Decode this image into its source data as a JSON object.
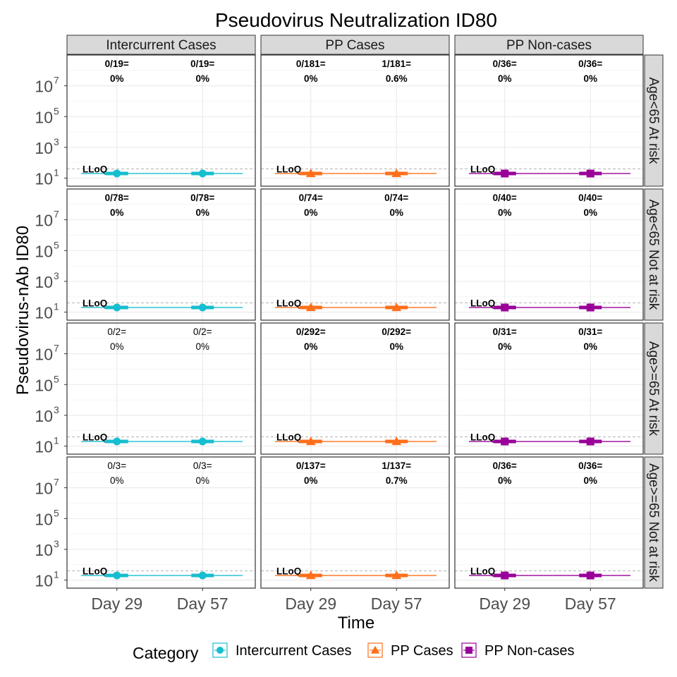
{
  "chart_data": {
    "type": "line",
    "title": "Pseudovirus Neutralization ID80",
    "xlabel": "Time",
    "ylabel": "Pseudovirus-nAb ID80",
    "y_scale": "log10",
    "ylim": [
      3,
      1000000000
    ],
    "y_ticks": [
      {
        "value": 10,
        "base": "10",
        "exp": "1"
      },
      {
        "value": 1000,
        "base": "10",
        "exp": "3"
      },
      {
        "value": 100000,
        "base": "10",
        "exp": "5"
      },
      {
        "value": 10000000,
        "base": "10",
        "exp": "7"
      }
    ],
    "x_categories": [
      "Day 29",
      "Day 57"
    ],
    "lloq": {
      "label": "LLoQ",
      "value": 40
    },
    "columns": [
      "Intercurrent Cases",
      "PP Cases",
      "PP Non-cases"
    ],
    "rows": [
      "Age<65 At risk",
      "Age<65 Not at risk",
      "Age>=65 At risk",
      "Age>=65 Not at risk"
    ],
    "legend": {
      "title": "Category",
      "position": "bottom",
      "items": [
        {
          "label": "Intercurrent Cases",
          "color": "#17becf",
          "shape": "circle"
        },
        {
          "label": "PP Cases",
          "color": "#ff6f1b",
          "shape": "triangle"
        },
        {
          "label": "PP Non-cases",
          "color": "#990099",
          "shape": "square"
        }
      ]
    },
    "grid": true,
    "panels": [
      {
        "row": 0,
        "col": 0,
        "values": [
          20,
          20
        ],
        "labels": [
          [
            "0/19=",
            "0%"
          ],
          [
            "0/19=",
            "0%"
          ]
        ],
        "bold": true
      },
      {
        "row": 0,
        "col": 1,
        "values": [
          20,
          20
        ],
        "labels": [
          [
            "0/181=",
            "0%"
          ],
          [
            "1/181=",
            "0.6%"
          ]
        ],
        "bold": true
      },
      {
        "row": 0,
        "col": 2,
        "values": [
          20,
          20
        ],
        "labels": [
          [
            "0/36=",
            "0%"
          ],
          [
            "0/36=",
            "0%"
          ]
        ],
        "bold": true
      },
      {
        "row": 1,
        "col": 0,
        "values": [
          20,
          20
        ],
        "labels": [
          [
            "0/78=",
            "0%"
          ],
          [
            "0/78=",
            "0%"
          ]
        ],
        "bold": true
      },
      {
        "row": 1,
        "col": 1,
        "values": [
          20,
          20
        ],
        "labels": [
          [
            "0/74=",
            "0%"
          ],
          [
            "0/74=",
            "0%"
          ]
        ],
        "bold": true
      },
      {
        "row": 1,
        "col": 2,
        "values": [
          20,
          20
        ],
        "labels": [
          [
            "0/40=",
            "0%"
          ],
          [
            "0/40=",
            "0%"
          ]
        ],
        "bold": true
      },
      {
        "row": 2,
        "col": 0,
        "values": [
          20,
          20
        ],
        "labels": [
          [
            "0/2=",
            "0%"
          ],
          [
            "0/2=",
            "0%"
          ]
        ],
        "bold": false
      },
      {
        "row": 2,
        "col": 1,
        "values": [
          20,
          20
        ],
        "labels": [
          [
            "0/292=",
            "0%"
          ],
          [
            "0/292=",
            "0%"
          ]
        ],
        "bold": true
      },
      {
        "row": 2,
        "col": 2,
        "values": [
          20,
          20
        ],
        "labels": [
          [
            "0/31=",
            "0%"
          ],
          [
            "0/31=",
            "0%"
          ]
        ],
        "bold": true
      },
      {
        "row": 3,
        "col": 0,
        "values": [
          20,
          20
        ],
        "labels": [
          [
            "0/3=",
            "0%"
          ],
          [
            "0/3=",
            "0%"
          ]
        ],
        "bold": false
      },
      {
        "row": 3,
        "col": 1,
        "values": [
          20,
          20
        ],
        "labels": [
          [
            "0/137=",
            "0%"
          ],
          [
            "1/137=",
            "0.7%"
          ]
        ],
        "bold": true
      },
      {
        "row": 3,
        "col": 2,
        "values": [
          20,
          20
        ],
        "labels": [
          [
            "0/36=",
            "0%"
          ],
          [
            "0/36=",
            "0%"
          ]
        ],
        "bold": true
      }
    ]
  }
}
